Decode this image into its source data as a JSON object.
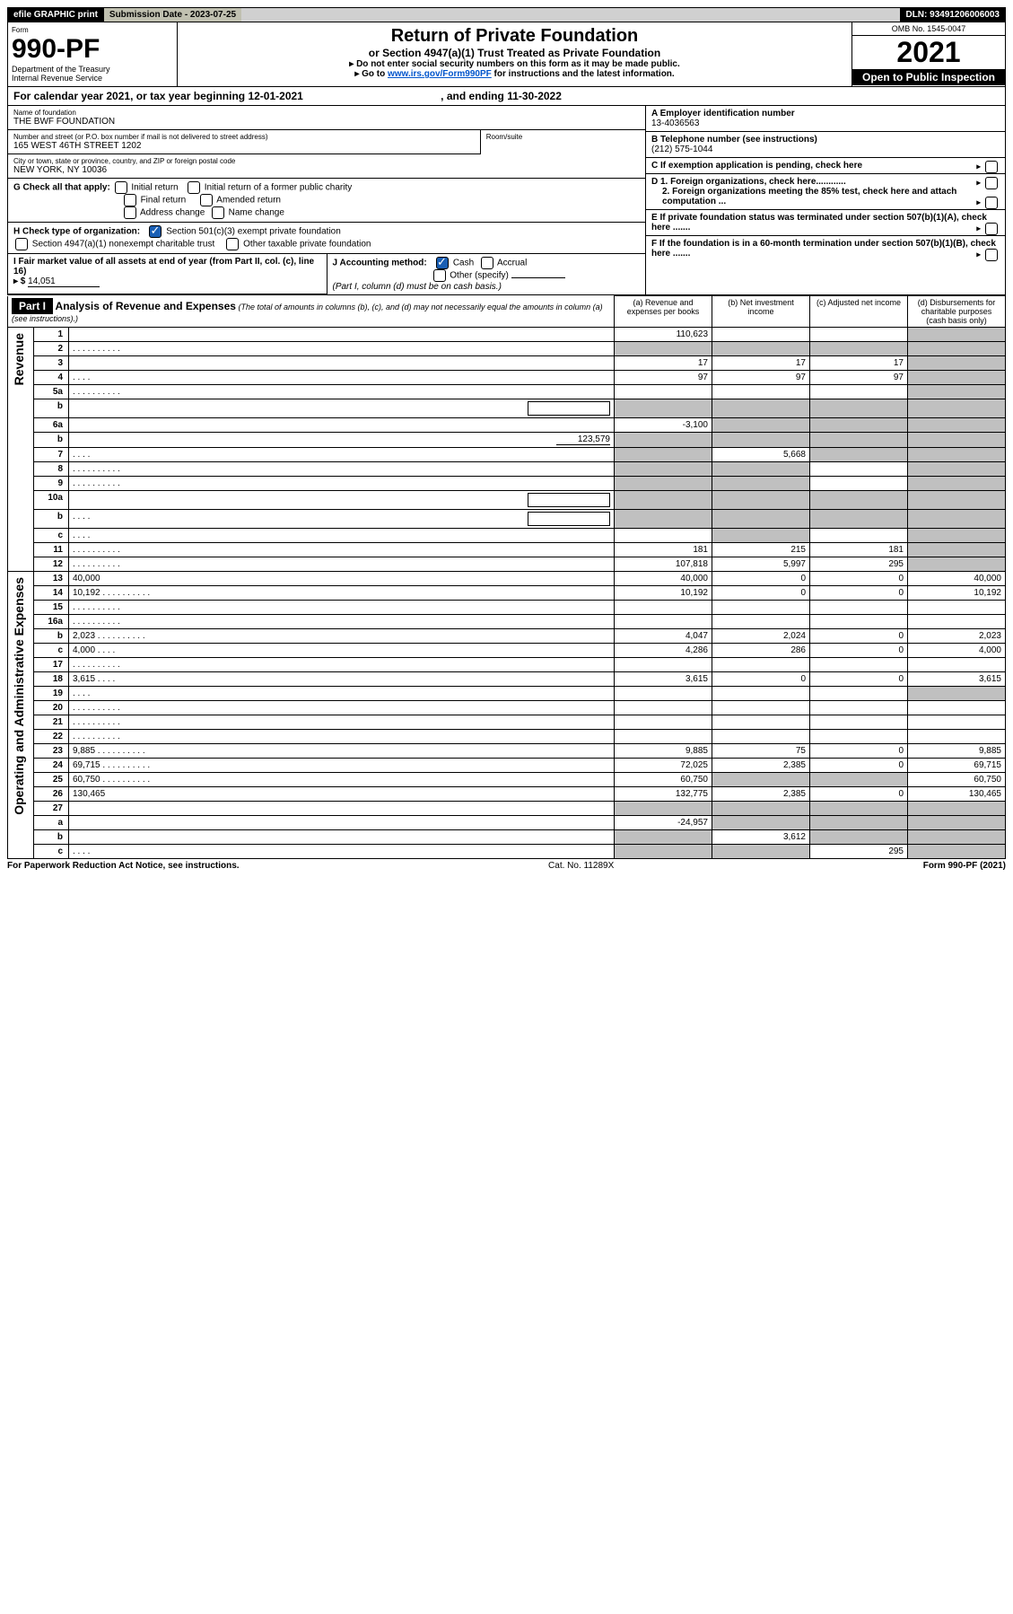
{
  "top": {
    "efile": "efile GRAPHIC print",
    "submission": "Submission Date - 2023-07-25",
    "dln": "DLN: 93491206006003"
  },
  "header": {
    "form": "Form",
    "form_num": "990-PF",
    "dept": "Department of the Treasury",
    "irs": "Internal Revenue Service",
    "title": "Return of Private Foundation",
    "subtitle": "or Section 4947(a)(1) Trust Treated as Private Foundation",
    "note1": "▸ Do not enter social security numbers on this form as it may be made public.",
    "note2_pre": "▸ Go to ",
    "note2_link": "www.irs.gov/Form990PF",
    "note2_post": " for instructions and the latest information.",
    "omb": "OMB No. 1545-0047",
    "year": "2021",
    "open": "Open to Public Inspection"
  },
  "cal_year": {
    "pre": "For calendar year 2021, or tax year beginning ",
    "begin": "12-01-2021",
    "mid": " , and ending ",
    "end": "11-30-2022"
  },
  "foundation": {
    "name_label": "Name of foundation",
    "name": "THE BWF FOUNDATION",
    "addr_label": "Number and street (or P.O. box number if mail is not delivered to street address)",
    "addr": "165 WEST 46TH STREET 1202",
    "room_label": "Room/suite",
    "city_label": "City or town, state or province, country, and ZIP or foreign postal code",
    "city": "NEW YORK, NY  10036",
    "ein_label": "A Employer identification number",
    "ein": "13-4036563",
    "phone_label": "B Telephone number (see instructions)",
    "phone": "(212) 575-1044",
    "c_label": "C If exemption application is pending, check here"
  },
  "checks": {
    "g_label": "G Check all that apply:",
    "g_initial": "Initial return",
    "g_initial_former": "Initial return of a former public charity",
    "g_final": "Final return",
    "g_amended": "Amended return",
    "g_address": "Address change",
    "g_name": "Name change",
    "h_label": "H Check type of organization:",
    "h_501c3": "Section 501(c)(3) exempt private foundation",
    "h_4947": "Section 4947(a)(1) nonexempt charitable trust",
    "h_other": "Other taxable private foundation",
    "i_label": "I Fair market value of all assets at end of year (from Part II, col. (c), line 16)",
    "i_value": "14,051",
    "j_label": "J Accounting method:",
    "j_cash": "Cash",
    "j_accrual": "Accrual",
    "j_other": "Other (specify)",
    "j_note": "(Part I, column (d) must be on cash basis.)",
    "d1": "D 1. Foreign organizations, check here............",
    "d2": "2. Foreign organizations meeting the 85% test, check here and attach computation ...",
    "e_label": "E  If private foundation status was terminated under section 507(b)(1)(A), check here .......",
    "f_label": "F  If the foundation is in a 60-month termination under section 507(b)(1)(B), check here .......",
    "i_prefix": "▸ $"
  },
  "part1": {
    "header": "Part I",
    "title": "Analysis of Revenue and Expenses",
    "title_note": " (The total of amounts in columns (b), (c), and (d) may not necessarily equal the amounts in column (a) (see instructions).)",
    "col_a": "(a)  Revenue and expenses per books",
    "col_b": "(b)  Net investment income",
    "col_c": "(c)  Adjusted net income",
    "col_d": "(d)  Disbursements for charitable purposes (cash basis only)"
  },
  "sections": {
    "revenue": "Revenue",
    "expenses": "Operating and Administrative Expenses"
  },
  "rows": [
    {
      "n": "1",
      "d": "",
      "a": "110,623",
      "b": "",
      "c": "",
      "d_shade": true
    },
    {
      "n": "2",
      "d": "",
      "dots": true,
      "a": "",
      "b": "",
      "c": "",
      "all_shade": true
    },
    {
      "n": "3",
      "d": "",
      "a": "17",
      "b": "17",
      "c": "17",
      "d_shade": true
    },
    {
      "n": "4",
      "d": "",
      "dots": "sm",
      "a": "97",
      "b": "97",
      "c": "97",
      "d_shade": true
    },
    {
      "n": "5a",
      "d": "",
      "dots": true,
      "a": "",
      "b": "",
      "c": "",
      "d_shade": true
    },
    {
      "n": "b",
      "d": "",
      "inline_box": true,
      "a": "",
      "b": "",
      "c": "",
      "abcd_shade": true
    },
    {
      "n": "6a",
      "d": "",
      "a": "-3,100",
      "b": "",
      "c": "",
      "bcd_shade": true
    },
    {
      "n": "b",
      "d": "",
      "inline_val": "123,579",
      "a": "",
      "b": "",
      "c": "",
      "abcd_shade": true
    },
    {
      "n": "7",
      "d": "",
      "dots": "sm",
      "a": "",
      "b": "5,668",
      "c": "",
      "a_shade": true,
      "cd_shade": true
    },
    {
      "n": "8",
      "d": "",
      "dots": true,
      "a": "",
      "b": "",
      "c": "",
      "ab_shade": true,
      "d_shade": true
    },
    {
      "n": "9",
      "d": "",
      "dots": true,
      "a": "",
      "b": "",
      "c": "",
      "ab_shade": true,
      "d_shade": true
    },
    {
      "n": "10a",
      "d": "",
      "inline_box": true,
      "a": "",
      "b": "",
      "c": "",
      "abcd_shade": true
    },
    {
      "n": "b",
      "d": "",
      "dots": "sm",
      "inline_box": true,
      "a": "",
      "b": "",
      "c": "",
      "abcd_shade": true
    },
    {
      "n": "c",
      "d": "",
      "dots": "sm",
      "a": "",
      "b": "",
      "c": "",
      "b_shade": true,
      "d_shade": true
    },
    {
      "n": "11",
      "d": "",
      "dots": true,
      "a": "181",
      "b": "215",
      "c": "181",
      "d_shade": true
    },
    {
      "n": "12",
      "d": "",
      "dots": true,
      "a": "107,818",
      "b": "5,997",
      "c": "295",
      "d_shade": true
    },
    {
      "n": "13",
      "d": "40,000",
      "a": "40,000",
      "b": "0",
      "c": "0",
      "section": "exp"
    },
    {
      "n": "14",
      "d": "10,192",
      "dots": true,
      "a": "10,192",
      "b": "0",
      "c": "0"
    },
    {
      "n": "15",
      "d": "",
      "dots": true,
      "a": "",
      "b": "",
      "c": ""
    },
    {
      "n": "16a",
      "d": "",
      "dots": true,
      "a": "",
      "b": "",
      "c": ""
    },
    {
      "n": "b",
      "d": "2,023",
      "dots": true,
      "a": "4,047",
      "b": "2,024",
      "c": "0"
    },
    {
      "n": "c",
      "d": "4,000",
      "dots": "sm",
      "a": "4,286",
      "b": "286",
      "c": "0"
    },
    {
      "n": "17",
      "d": "",
      "dots": true,
      "a": "",
      "b": "",
      "c": ""
    },
    {
      "n": "18",
      "d": "3,615",
      "dots": "sm",
      "a": "3,615",
      "b": "0",
      "c": "0"
    },
    {
      "n": "19",
      "d": "",
      "dots": "sm",
      "a": "",
      "b": "",
      "c": "",
      "d_shade": true
    },
    {
      "n": "20",
      "d": "",
      "dots": true,
      "a": "",
      "b": "",
      "c": ""
    },
    {
      "n": "21",
      "d": "",
      "dots": true,
      "a": "",
      "b": "",
      "c": ""
    },
    {
      "n": "22",
      "d": "",
      "dots": true,
      "a": "",
      "b": "",
      "c": ""
    },
    {
      "n": "23",
      "d": "9,885",
      "dots": true,
      "a": "9,885",
      "b": "75",
      "c": "0"
    },
    {
      "n": "24",
      "d": "69,715",
      "dots": true,
      "a": "72,025",
      "b": "2,385",
      "c": "0"
    },
    {
      "n": "25",
      "d": "60,750",
      "dots": true,
      "a": "60,750",
      "b": "",
      "c": "",
      "bc_shade": true
    },
    {
      "n": "26",
      "d": "130,465",
      "a": "132,775",
      "b": "2,385",
      "c": "0"
    },
    {
      "n": "27",
      "d": "",
      "a": "",
      "b": "",
      "c": "",
      "abcd_shade": true
    },
    {
      "n": "a",
      "d": "",
      "a": "-24,957",
      "b": "",
      "c": "",
      "bcd_shade": true
    },
    {
      "n": "b",
      "d": "",
      "a": "",
      "b": "3,612",
      "c": "",
      "a_shade": true,
      "cd_shade": true
    },
    {
      "n": "c",
      "d": "",
      "dots": "sm",
      "a": "",
      "b": "",
      "c": "295",
      "ab_shade": true,
      "d_shade": true
    }
  ],
  "footer": {
    "left": "For Paperwork Reduction Act Notice, see instructions.",
    "center": "Cat. No. 11289X",
    "right": "Form 990-PF (2021)"
  }
}
